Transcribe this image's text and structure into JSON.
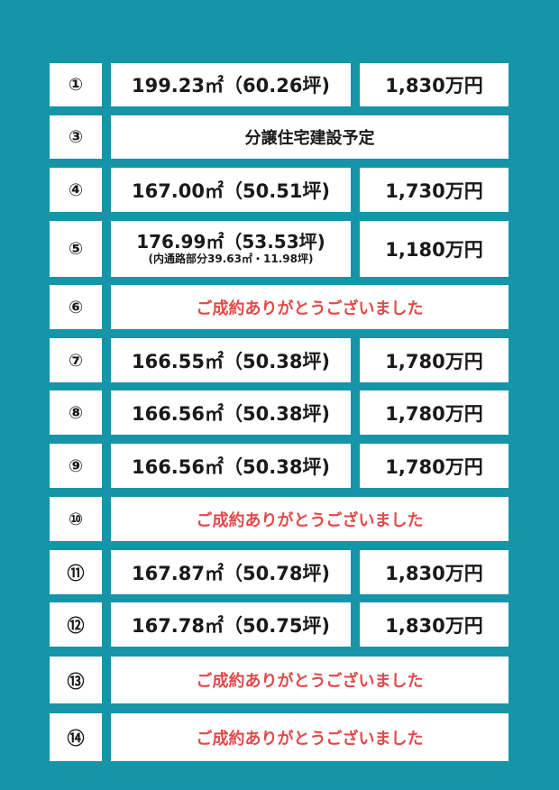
{
  "rows": [
    {
      "no": "①",
      "area": "199.23㎡（60.26坪)",
      "price": "1,830万円"
    },
    {
      "no": "③",
      "note": "分譲住宅建設予定"
    },
    {
      "no": "④",
      "area": "167.00㎡（50.51坪)",
      "price": "1,730万円"
    },
    {
      "no": "⑤",
      "area": "176.99㎡（53.53坪)",
      "area_sub": "(内通路部分39.63㎡・11.98坪)",
      "price": "1,180万円"
    },
    {
      "no": "⑥",
      "sold": "ご成約ありがとうございました"
    },
    {
      "no": "⑦",
      "area": "166.55㎡（50.38坪)",
      "price": "1,780万円"
    },
    {
      "no": "⑧",
      "area": "166.56㎡（50.38坪)",
      "price": "1,780万円"
    },
    {
      "no": "⑨",
      "area": "166.56㎡（50.38坪)",
      "price": "1,780万円"
    },
    {
      "no": "⑩",
      "sold": "ご成約ありがとうございました"
    },
    {
      "no": "⑪",
      "area": "167.87㎡（50.78坪)",
      "price": "1,830万円"
    },
    {
      "no": "⑫",
      "area": "167.78㎡（50.75坪)",
      "price": "1,830万円"
    },
    {
      "no": "⑬",
      "sold": "ご成約ありがとうございました"
    },
    {
      "no": "⑭",
      "sold": "ご成約ありがとうございました"
    }
  ],
  "colors": {
    "background": "#1694a8",
    "cell": "#ffffff",
    "text": "#1a1a1a",
    "sold": "#e04a4a"
  }
}
